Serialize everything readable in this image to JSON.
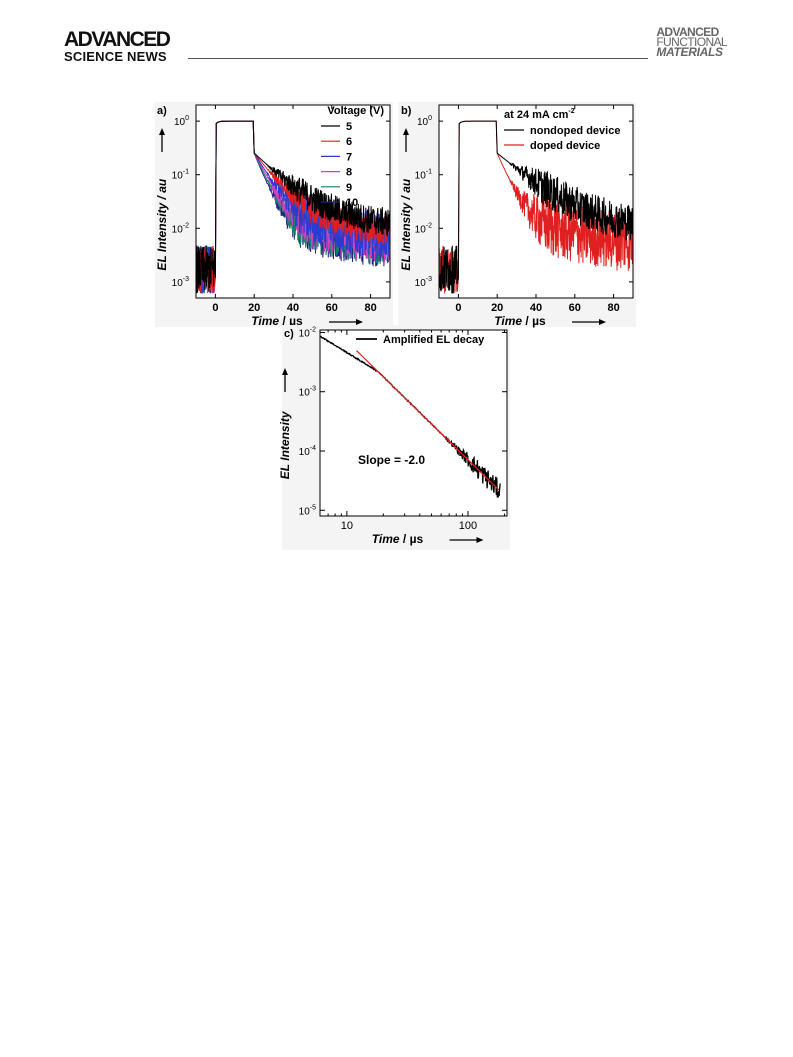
{
  "header": {
    "journal_left_line1": "ADVANCED",
    "journal_left_line2": "SCIENCE NEWS",
    "journal_right_line1": "ADVANCED",
    "journal_right_line2": "FUNCTIONAL",
    "journal_right_line3": "MATERIALS"
  },
  "chart_data": [
    {
      "panel": "a)",
      "type": "line",
      "ylabel": "EL Intensity / au",
      "xlabel_main": "Time",
      "xlabel_unit": " / µs",
      "xlim": [
        -10,
        90
      ],
      "ylim": [
        0.0005,
        2
      ],
      "yscale": "log",
      "xticks": [
        0,
        20,
        40,
        60,
        80
      ],
      "yticks": [
        0.001,
        0.01,
        0.1,
        1
      ],
      "yticklabels": [
        "10",
        "10",
        "10",
        "10"
      ],
      "ytickexps": [
        "-3",
        "-2",
        "-1",
        "0"
      ],
      "legend_title": "Voltage (V)",
      "legend_position": "top-right",
      "series": [
        {
          "name": "5",
          "color": "#000000",
          "tail": 0.0045,
          "tau": 12
        },
        {
          "name": "6",
          "color": "#e02020",
          "tail": 0.0028,
          "tau": 9
        },
        {
          "name": "7",
          "color": "#2a3ccf",
          "tail": 0.0021,
          "tau": 7
        },
        {
          "name": "8",
          "color": "#d040c0",
          "tail": 0.0018,
          "tau": 6
        },
        {
          "name": "9",
          "color": "#14806a",
          "tail": 0.0017,
          "tau": 5.2
        },
        {
          "name": "10",
          "color": "#202080",
          "tail": 0.0016,
          "tau": 4.6
        }
      ]
    },
    {
      "panel": "b)",
      "type": "line",
      "ylabel": "EL Intensity / au",
      "xlabel_main": "Time",
      "xlabel_unit": " / µs",
      "xlim": [
        -10,
        90
      ],
      "ylim": [
        0.0005,
        2
      ],
      "yscale": "log",
      "xticks": [
        0,
        20,
        40,
        60,
        80
      ],
      "yticks": [
        0.001,
        0.01,
        0.1,
        1
      ],
      "yticklabels": [
        "10",
        "10",
        "10",
        "10"
      ],
      "ytickexps": [
        "-3",
        "-2",
        "-1",
        "0"
      ],
      "annotation_main": "at 24 mA cm",
      "annotation_exp": "-2",
      "legend_position": "top-right",
      "series": [
        {
          "name": "nondoped device",
          "color": "#000000",
          "tail": 0.0026,
          "tau": 14
        },
        {
          "name": "doped device",
          "color": "#e02020",
          "tail": 0.0019,
          "tau": 5
        }
      ]
    },
    {
      "panel": "c)",
      "type": "line",
      "ylabel": "EL Intensity",
      "xlabel_main": "Time",
      "xlabel_unit": " / µs",
      "xscale": "log",
      "yscale": "log",
      "xlim": [
        6,
        210
      ],
      "ylim": [
        8e-06,
        0.011
      ],
      "xticks": [
        10,
        100
      ],
      "yticks": [
        1e-05,
        0.0001,
        0.001,
        0.01
      ],
      "yticklabels": [
        "10",
        "10",
        "10",
        "10"
      ],
      "ytickexps": [
        "-5",
        "-4",
        "-3",
        "-2"
      ],
      "annotation": "Slope = -2.0",
      "legend_position": "top-right",
      "series": [
        {
          "name": "Amplified EL decay",
          "color": "#000000"
        },
        {
          "name": "",
          "color": "#e02020",
          "slope": -2.0,
          "x_start": 12,
          "x_end": 180
        }
      ]
    }
  ]
}
